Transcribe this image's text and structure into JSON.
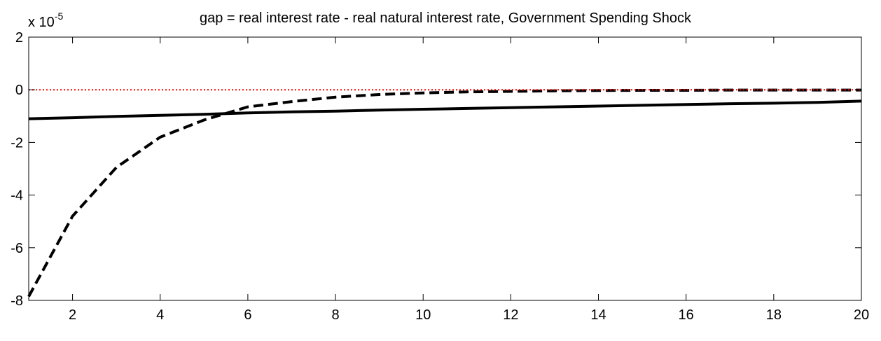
{
  "chart_data": {
    "type": "line",
    "title": "gap = real interest rate - real natural interest rate, Government Spending Shock",
    "xlabel": "",
    "ylabel": "",
    "xlim": [
      1,
      20
    ],
    "ylim": [
      -8,
      2
    ],
    "y_exponent_base": "x 10",
    "y_exponent_power": "-5",
    "x_ticks": [
      2,
      4,
      6,
      8,
      10,
      12,
      14,
      16,
      18,
      20
    ],
    "y_ticks": [
      2,
      0,
      -2,
      -4,
      -6,
      -8
    ],
    "grid": false,
    "legend": "none",
    "x": [
      1,
      2,
      3,
      4,
      5,
      6,
      7,
      8,
      9,
      10,
      11,
      12,
      13,
      14,
      15,
      16,
      17,
      18,
      19,
      20
    ],
    "series": [
      {
        "style": "solid",
        "color": "#000000",
        "values": [
          -1.1,
          -1.06,
          -1.01,
          -0.97,
          -0.93,
          -0.88,
          -0.84,
          -0.81,
          -0.77,
          -0.74,
          -0.71,
          -0.68,
          -0.65,
          -0.62,
          -0.59,
          -0.56,
          -0.53,
          -0.51,
          -0.48,
          -0.43
        ]
      },
      {
        "style": "dashed",
        "color": "#000000",
        "values": [
          -7.85,
          -4.8,
          -2.95,
          -1.8,
          -1.15,
          -0.65,
          -0.45,
          -0.28,
          -0.18,
          -0.12,
          -0.08,
          -0.06,
          -0.04,
          -0.03,
          -0.02,
          -0.02,
          -0.01,
          -0.01,
          -0.01,
          -0.01
        ]
      },
      {
        "style": "dotted",
        "color": "#ff0000",
        "values": [
          0,
          0,
          0,
          0,
          0,
          0,
          0,
          0,
          0,
          0,
          0,
          0,
          0,
          0,
          0,
          0,
          0,
          0,
          0,
          0
        ]
      }
    ]
  }
}
